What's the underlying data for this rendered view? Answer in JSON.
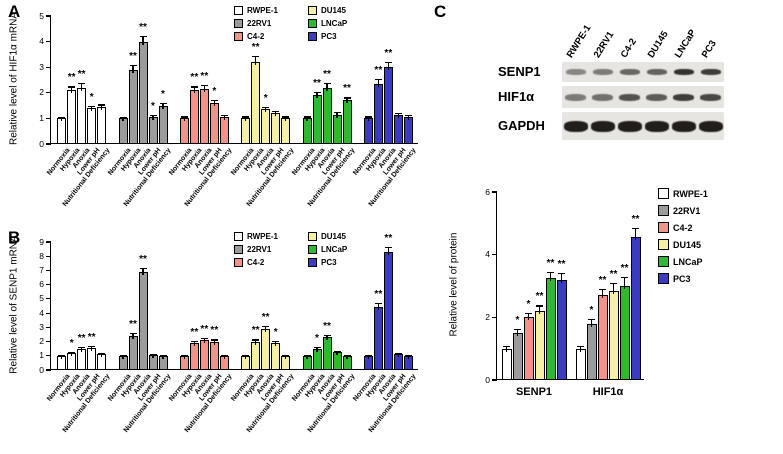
{
  "panels": {
    "a": {
      "label": "A"
    },
    "b": {
      "label": "B"
    },
    "c": {
      "label": "C"
    }
  },
  "conditions": [
    "Normoxia",
    "Hypoxia",
    "Anoxia",
    "Lower pH",
    "Nutritional Deficiency"
  ],
  "cell_lines": [
    {
      "name": "RWPE-1",
      "color": "#ffffff"
    },
    {
      "name": "22RV1",
      "color": "#9b9b9b"
    },
    {
      "name": "C4-2",
      "color": "#f3918b"
    },
    {
      "name": "DU145",
      "color": "#f6f0a6"
    },
    {
      "name": "LNCaP",
      "color": "#2eba2e"
    },
    {
      "name": "PC3",
      "color": "#3a3ac2"
    }
  ],
  "chart_data": [
    {
      "id": "chart-a",
      "type": "bar",
      "panel": "A",
      "ylabel": "Relative level of HIF1α mRNA",
      "ylim": [
        0,
        5
      ],
      "yticks": [
        0,
        1,
        2,
        3,
        4,
        5
      ],
      "grouping": "series",
      "categories": [
        "Normoxia",
        "Hypoxia",
        "Anoxia",
        "Lower pH",
        "Nutritional Deficiency"
      ],
      "series": [
        {
          "name": "RWPE-1",
          "color": "#ffffff",
          "values": [
            1.0,
            2.1,
            2.2,
            1.4,
            1.45
          ],
          "err": [
            0.06,
            0.15,
            0.2,
            0.1,
            0.1
          ],
          "sig": [
            "",
            "**",
            "**",
            "*",
            ""
          ]
        },
        {
          "name": "22RV1",
          "color": "#9b9b9b",
          "values": [
            1.0,
            2.9,
            4.0,
            1.05,
            1.5
          ],
          "err": [
            0.06,
            0.2,
            0.22,
            0.08,
            0.12
          ],
          "sig": [
            "",
            "**",
            "**",
            "*",
            "*"
          ]
        },
        {
          "name": "C4-2",
          "color": "#f3918b",
          "values": [
            1.0,
            2.1,
            2.15,
            1.6,
            1.05
          ],
          "err": [
            0.08,
            0.15,
            0.15,
            0.12,
            0.08
          ],
          "sig": [
            "",
            "**",
            "**",
            "*",
            ""
          ]
        },
        {
          "name": "DU145",
          "color": "#f6f0a6",
          "values": [
            1.0,
            3.2,
            1.35,
            1.2,
            1.0
          ],
          "err": [
            0.08,
            0.25,
            0.1,
            0.1,
            0.08
          ],
          "sig": [
            "",
            "**",
            "*",
            "",
            ""
          ]
        },
        {
          "name": "LNCaP",
          "color": "#2eba2e",
          "values": [
            1.0,
            1.9,
            2.2,
            1.15,
            1.7
          ],
          "err": [
            0.08,
            0.15,
            0.18,
            0.1,
            0.12
          ],
          "sig": [
            "",
            "**",
            "**",
            "",
            "**"
          ]
        },
        {
          "name": "PC3",
          "color": "#3a3ac2",
          "values": [
            1.0,
            2.35,
            3.0,
            1.15,
            1.05
          ],
          "err": [
            0.08,
            0.18,
            0.2,
            0.08,
            0.08
          ],
          "sig": [
            "",
            "**",
            "**",
            "",
            ""
          ]
        }
      ],
      "legend_position": "top-right"
    },
    {
      "id": "chart-b",
      "type": "bar",
      "panel": "B",
      "ylabel": "Relative level of SENP1 mRNA",
      "ylim": [
        0,
        9
      ],
      "yticks": [
        0,
        1,
        2,
        3,
        4,
        5,
        6,
        7,
        8,
        9
      ],
      "grouping": "series",
      "categories": [
        "Normoxia",
        "Hypoxia",
        "Anoxia",
        "Lower pH",
        "Nutritional Deficiency"
      ],
      "series": [
        {
          "name": "RWPE-1",
          "color": "#ffffff",
          "values": [
            1.0,
            1.2,
            1.5,
            1.55,
            1.1
          ],
          "err": [
            0.06,
            0.1,
            0.12,
            0.12,
            0.08
          ],
          "sig": [
            "",
            "*",
            "**",
            "**",
            ""
          ]
        },
        {
          "name": "22RV1",
          "color": "#9b9b9b",
          "values": [
            1.0,
            2.4,
            6.9,
            1.05,
            1.0
          ],
          "err": [
            0.08,
            0.2,
            0.3,
            0.08,
            0.08
          ],
          "sig": [
            "",
            "**",
            "**",
            "",
            ""
          ]
        },
        {
          "name": "C4-2",
          "color": "#f3918b",
          "values": [
            1.0,
            1.9,
            2.1,
            2.0,
            1.0
          ],
          "err": [
            0.08,
            0.15,
            0.15,
            0.15,
            0.08
          ],
          "sig": [
            "",
            "**",
            "**",
            "**",
            ""
          ]
        },
        {
          "name": "DU145",
          "color": "#f6f0a6",
          "values": [
            1.0,
            2.0,
            2.9,
            1.9,
            1.0
          ],
          "err": [
            0.08,
            0.15,
            0.2,
            0.15,
            0.08
          ],
          "sig": [
            "",
            "**",
            "**",
            "*",
            ""
          ]
        },
        {
          "name": "LNCaP",
          "color": "#2eba2e",
          "values": [
            1.0,
            1.5,
            2.3,
            1.25,
            1.0
          ],
          "err": [
            0.08,
            0.12,
            0.18,
            0.1,
            0.08
          ],
          "sig": [
            "",
            "*",
            "**",
            "",
            ""
          ]
        },
        {
          "name": "PC3",
          "color": "#3a3ac2",
          "values": [
            1.0,
            4.4,
            8.3,
            1.1,
            1.0
          ],
          "err": [
            0.08,
            0.3,
            0.35,
            0.08,
            0.08
          ],
          "sig": [
            "",
            "**",
            "**",
            "",
            ""
          ]
        }
      ],
      "legend_position": "top-right"
    },
    {
      "id": "chart-c",
      "type": "bar",
      "panel": "C",
      "ylabel": "Relative level of protein",
      "ylim": [
        0,
        6
      ],
      "yticks": [
        0,
        2,
        4,
        6
      ],
      "grouping": "category",
      "categories": [
        "SENP1",
        "HIF1α"
      ],
      "series": [
        {
          "name": "RWPE-1",
          "color": "#ffffff",
          "values": [
            1.0,
            1.0
          ],
          "err": [
            0.08,
            0.1
          ],
          "sig": [
            "",
            ""
          ]
        },
        {
          "name": "22RV1",
          "color": "#9b9b9b",
          "values": [
            1.5,
            1.8
          ],
          "err": [
            0.12,
            0.15
          ],
          "sig": [
            "*",
            "*"
          ]
        },
        {
          "name": "C4-2",
          "color": "#f3918b",
          "values": [
            2.0,
            2.7
          ],
          "err": [
            0.15,
            0.2
          ],
          "sig": [
            "*",
            "**"
          ]
        },
        {
          "name": "DU145",
          "color": "#f6f0a6",
          "values": [
            2.2,
            2.85
          ],
          "err": [
            0.18,
            0.25
          ],
          "sig": [
            "**",
            "**"
          ]
        },
        {
          "name": "LNCaP",
          "color": "#2eba2e",
          "values": [
            3.25,
            3.0
          ],
          "err": [
            0.2,
            0.3
          ],
          "sig": [
            "**",
            "**"
          ]
        },
        {
          "name": "PC3",
          "color": "#3a3ac2",
          "values": [
            3.2,
            4.55
          ],
          "err": [
            0.22,
            0.3
          ],
          "sig": [
            "**",
            "**"
          ]
        }
      ],
      "legend_position": "right"
    }
  ],
  "western_blot": {
    "lanes": [
      "RWPE-1",
      "22RV1",
      "C4-2",
      "DU145",
      "LNCaP",
      "PC3"
    ],
    "rows": [
      {
        "label": "SENP1",
        "band_height": 6,
        "band_width": 20,
        "intensities": [
          0.45,
          0.5,
          0.6,
          0.62,
          0.85,
          0.8
        ]
      },
      {
        "label": "HIF1α",
        "band_height": 7,
        "band_width": 21,
        "intensities": [
          0.5,
          0.55,
          0.7,
          0.65,
          0.8,
          0.75
        ]
      },
      {
        "label": "GAPDH",
        "band_height": 11,
        "band_width": 24,
        "intensities": [
          0.95,
          0.95,
          0.95,
          0.95,
          0.95,
          0.95
        ]
      }
    ]
  }
}
